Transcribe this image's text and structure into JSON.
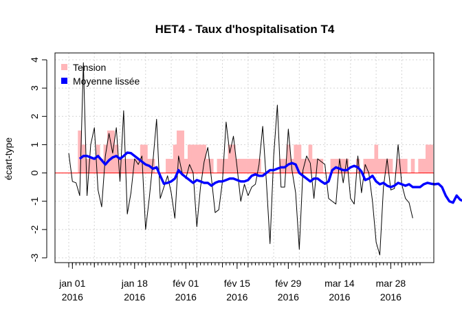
{
  "chart_data": {
    "type": "line",
    "title": "HET4 - Taux d'hospitalisation T4",
    "ylabel": "écart-type",
    "xlabel": "",
    "ylim": [
      -3,
      4
    ],
    "yticks": [
      -3,
      -2,
      -1,
      0,
      1,
      2,
      3,
      4
    ],
    "grid": true,
    "legend_position": "top-left",
    "reference_line": {
      "y": 0,
      "color": "#ff0000"
    },
    "x_start": "2015-12-31",
    "x_end": "2016-04-05",
    "xticks": [
      {
        "date": "2016-01-01",
        "line1": "jan 01",
        "line2": "2016"
      },
      {
        "date": "2016-01-18",
        "line1": "jan 18",
        "line2": "2016"
      },
      {
        "date": "2016-02-01",
        "line1": "fév 01",
        "line2": "2016"
      },
      {
        "date": "2016-02-15",
        "line1": "fév 15",
        "line2": "2016"
      },
      {
        "date": "2016-02-29",
        "line1": "fév 29",
        "line2": "2016"
      },
      {
        "date": "2016-03-14",
        "line1": "mar 14",
        "line2": "2016"
      },
      {
        "date": "2016-03-28",
        "line1": "mar 28",
        "line2": "2016"
      }
    ],
    "series": [
      {
        "name": "Tension",
        "kind": "bar",
        "color": "#ffb6b9",
        "start_date": "2016-01-03",
        "values": [
          1.5,
          1.0,
          0.5,
          0.5,
          0.5,
          1.0,
          0.5,
          1.0,
          1.5,
          1.5,
          1.0,
          0.5,
          0.5,
          0.5,
          0.5,
          0.5,
          0.5,
          1.0,
          1.0,
          0.5,
          0.5,
          0.0,
          0.0,
          0.0,
          0.5,
          0.5,
          1.0,
          1.5,
          1.5,
          0.5,
          1.0,
          1.0,
          1.0,
          1.0,
          1.0,
          0.5,
          0.5,
          0.0,
          0.5,
          0.5,
          0.5,
          1.0,
          1.0,
          0.5,
          0.5,
          0.5,
          0.5,
          0.5,
          0.5,
          0.5,
          0.0,
          0.0,
          0.0,
          0.0,
          0.0,
          0.5,
          0.5,
          1.0,
          0.5,
          1.0,
          1.0,
          0.5,
          0.5,
          1.0,
          0.5,
          0.5,
          0.5,
          0.0,
          0.0,
          0.5,
          0.5,
          0.5,
          0.5,
          0.5,
          0.0,
          0.0,
          0.5,
          0.0,
          0.5,
          0.5,
          0.5,
          1.0,
          0.5,
          0.5,
          0.5,
          0.5,
          0.0,
          0.5,
          0.5,
          0.5,
          0.0,
          0.5,
          0.0,
          0.5,
          0.5,
          1.0,
          1.0,
          0.0
        ]
      },
      {
        "name": "Moyenne lissée",
        "kind": "line",
        "color": "#0000ff",
        "start_date": "2016-01-03",
        "values": [
          0.5,
          0.6,
          0.6,
          0.55,
          0.5,
          0.6,
          0.45,
          0.3,
          0.45,
          0.55,
          0.6,
          0.5,
          0.6,
          0.72,
          0.7,
          0.6,
          0.5,
          0.4,
          0.3,
          0.25,
          0.15,
          0.2,
          -0.1,
          -0.38,
          -0.35,
          -0.3,
          -0.2,
          0.1,
          -0.05,
          -0.15,
          -0.25,
          -0.35,
          -0.25,
          -0.3,
          -0.35,
          -0.35,
          -0.45,
          -0.35,
          -0.3,
          -0.3,
          -0.25,
          -0.2,
          -0.2,
          -0.25,
          -0.3,
          -0.3,
          -0.25,
          -0.1,
          -0.05,
          -0.1,
          -0.1,
          0.0,
          0.1,
          0.1,
          0.15,
          0.2,
          0.2,
          0.3,
          0.35,
          0.3,
          0.0,
          -0.1,
          -0.2,
          -0.3,
          -0.2,
          -0.2,
          -0.3,
          -0.38,
          -0.3,
          0.1,
          0.2,
          0.15,
          0.1,
          0.1,
          0.2,
          0.25,
          0.2,
          0.05,
          -0.25,
          -0.2,
          -0.1,
          -0.3,
          -0.4,
          -0.35,
          -0.45,
          -0.5,
          -0.45,
          -0.35,
          -0.4,
          -0.45,
          -0.4,
          -0.5,
          -0.5,
          -0.5,
          -0.4,
          -0.35,
          -0.38,
          -0.4,
          -0.38,
          -0.5,
          -0.8,
          -1.0,
          -1.05,
          -0.8,
          -0.95,
          -1.0,
          -0.85,
          -0.7,
          -0.55
        ]
      },
      {
        "name": "Taux",
        "kind": "line",
        "color": "#000000",
        "start_date": "2015-12-31",
        "values": [
          0.7,
          -0.3,
          -0.35,
          -0.8,
          3.9,
          -0.8,
          1.0,
          1.6,
          -0.6,
          -1.2,
          0.6,
          1.4,
          0.7,
          1.6,
          -0.3,
          2.2,
          -1.45,
          -0.7,
          0.5,
          0.3,
          0.6,
          -2.0,
          -0.9,
          0.4,
          1.9,
          -0.9,
          -0.5,
          -0.1,
          -0.7,
          -1.6,
          0.6,
          0.0,
          -0.2,
          0.3,
          0.0,
          -1.9,
          -0.5,
          0.4,
          0.9,
          -0.2,
          -1.4,
          -1.3,
          -0.3,
          1.8,
          0.7,
          1.3,
          0.2,
          -1.0,
          -0.4,
          -0.8,
          -0.5,
          -0.4,
          0.3,
          1.65,
          -0.3,
          -2.5,
          0.6,
          2.4,
          -0.5,
          -0.5,
          1.55,
          0.1,
          -0.7,
          -2.7,
          0.1,
          0.6,
          0.35,
          -0.9,
          0.5,
          0.4,
          0.3,
          -0.9,
          -1.0,
          -1.1,
          0.5,
          -0.35,
          0.5,
          -0.9,
          -1.1,
          0.6,
          -0.7,
          0.3,
          0.0,
          -1.0,
          -2.45,
          -2.9,
          -0.5,
          0.5,
          -0.6,
          -0.55,
          1.0,
          -0.4,
          -0.9,
          -1.05,
          -1.6
        ]
      }
    ]
  }
}
